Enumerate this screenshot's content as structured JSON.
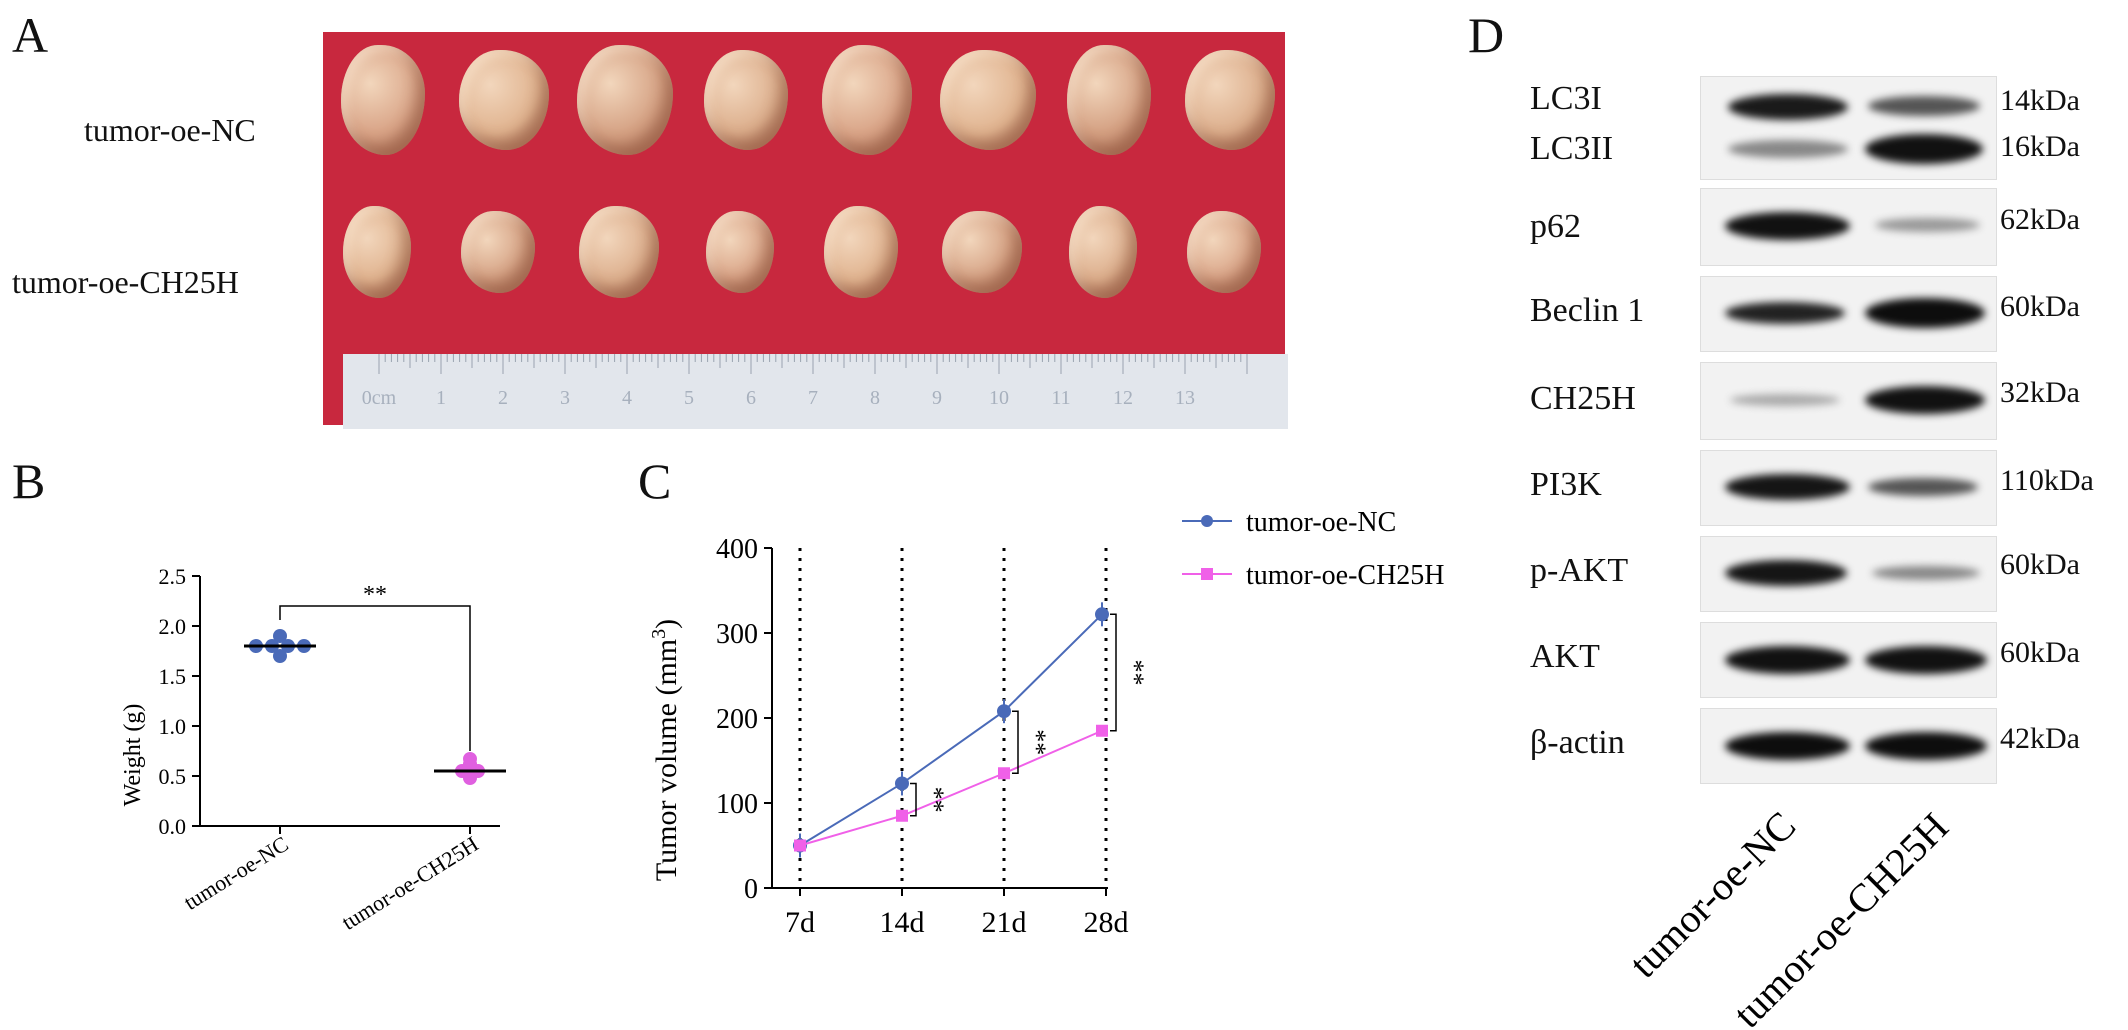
{
  "panels": {
    "a": "A",
    "b": "B",
    "c": "C",
    "d": "D"
  },
  "panel_a": {
    "row_labels": [
      "tumor-oe-NC",
      "tumor-oe-CH25H"
    ],
    "ruler_labels": [
      "0cm",
      "1",
      "2",
      "3",
      "4",
      "5",
      "6",
      "7",
      "8",
      "9",
      "10",
      "11",
      "12",
      "13"
    ],
    "background_color": "#c8283e"
  },
  "chart_data": [
    {
      "panel": "B",
      "type": "scatter",
      "categories": [
        "tumor-oe-NC",
        "tumor-oe-CH25H"
      ],
      "series": [
        {
          "category": "tumor-oe-NC",
          "values": [
            1.7,
            1.8,
            1.8,
            1.8,
            1.8,
            1.9
          ],
          "mean": 1.8,
          "color": "#4a6ab8"
        },
        {
          "category": "tumor-oe-CH25H",
          "values": [
            0.48,
            0.55,
            0.55,
            0.62,
            0.67
          ],
          "mean": 0.55,
          "color": "#e060e0"
        }
      ],
      "ylabel": "Weight (g)",
      "ylim": [
        0,
        2.5
      ],
      "yticks": [
        "0.0",
        "0.5",
        "1.0",
        "1.5",
        "2.0",
        "2.5"
      ],
      "significance": "**"
    },
    {
      "panel": "C",
      "type": "line",
      "x": [
        "7d",
        "14d",
        "21d",
        "28d"
      ],
      "series": [
        {
          "name": "tumor-oe-NC",
          "values": [
            50,
            123,
            208,
            322
          ],
          "color": "#4a6ab8",
          "marker": "circle"
        },
        {
          "name": "tumor-oe-CH25H",
          "values": [
            50,
            85,
            135,
            185
          ],
          "color": "#f060e8",
          "marker": "square"
        }
      ],
      "ylabel_main": "Tumor volume (mm",
      "ylabel_sup": "3",
      "ylabel_close": ")",
      "ylim": [
        0,
        400
      ],
      "yticks": [
        "0",
        "100",
        "200",
        "300",
        "400"
      ],
      "significance": [
        "**",
        "**",
        "**"
      ],
      "legend_position": "right"
    }
  ],
  "panel_d": {
    "blots": [
      {
        "label": "LC3I",
        "kda": "14kDa"
      },
      {
        "label": "LC3II",
        "kda": "16kDa"
      },
      {
        "label": "p62",
        "kda": "62kDa"
      },
      {
        "label": "Beclin 1",
        "kda": "60kDa"
      },
      {
        "label": "CH25H",
        "kda": "32kDa"
      },
      {
        "label": "PI3K",
        "kda": "110kDa"
      },
      {
        "label": "p-AKT",
        "kda": "60kDa"
      },
      {
        "label": "AKT",
        "kda": "60kDa"
      },
      {
        "label": "β-actin",
        "kda": "42kDa"
      }
    ],
    "lanes": [
      "tumor-oe-NC",
      "tumor-oe-CH25H"
    ]
  }
}
